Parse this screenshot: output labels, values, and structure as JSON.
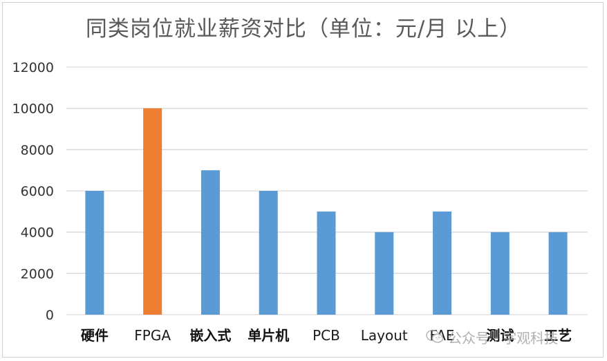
{
  "chart_data": {
    "type": "bar",
    "title": "同类岗位就业薪资对比（单位：元/月 以上）",
    "categories": [
      "硬件",
      "FPGA",
      "嵌入式",
      "单片机",
      "PCB",
      "Layout",
      "FAE",
      "测试",
      "工艺"
    ],
    "values": [
      6000,
      10000,
      7000,
      6000,
      5000,
      4000,
      5000,
      4000,
      4000
    ],
    "ylim": [
      0,
      12000
    ],
    "yticks": [
      0,
      2000,
      4000,
      6000,
      8000,
      10000,
      12000
    ],
    "grid": true,
    "xlabel": "",
    "ylabel": "",
    "colors": {
      "default_bar": "#5b9bd5",
      "highlight_bar": "#ed7d31",
      "highlight_category": "FPGA",
      "gridline": "#d9d9d9"
    }
  },
  "watermark": {
    "text": "公众号 · 宇观科技",
    "icon": "wechat-icon"
  }
}
